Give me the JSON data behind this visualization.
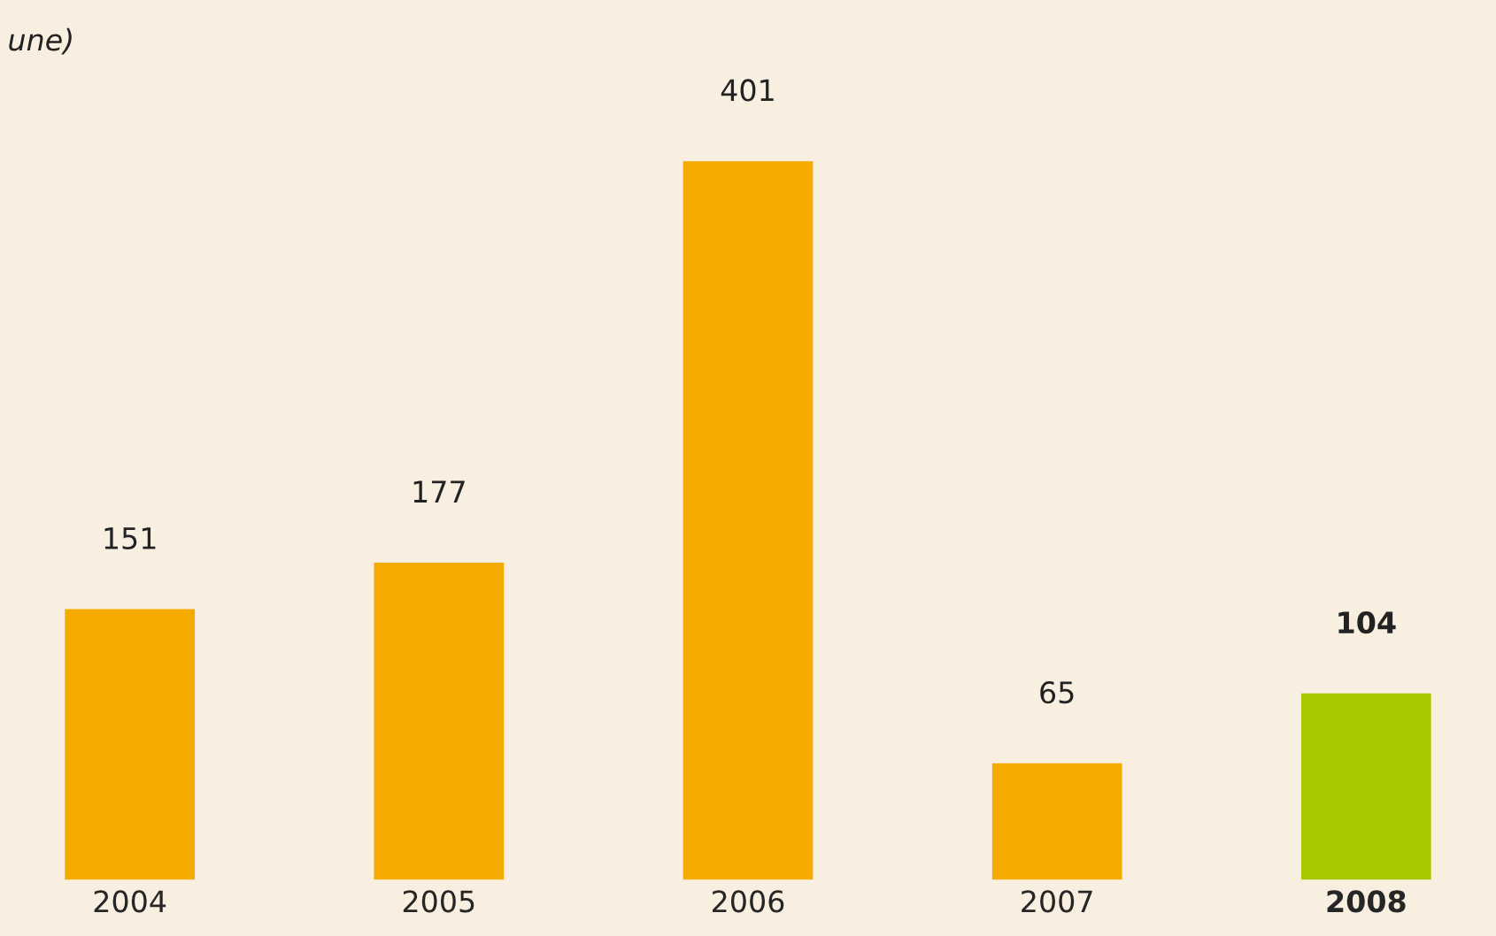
{
  "chart_data": {
    "type": "bar",
    "title": "une)",
    "categories": [
      "2004",
      "2005",
      "2006",
      "2007",
      "2008"
    ],
    "values": [
      151,
      177,
      401,
      65,
      104
    ],
    "colors": [
      "#f5aa00",
      "#f5aa00",
      "#f5aa00",
      "#f5aa00",
      "#a9c800"
    ],
    "data_labels": true,
    "grid": false,
    "legend": false
  }
}
